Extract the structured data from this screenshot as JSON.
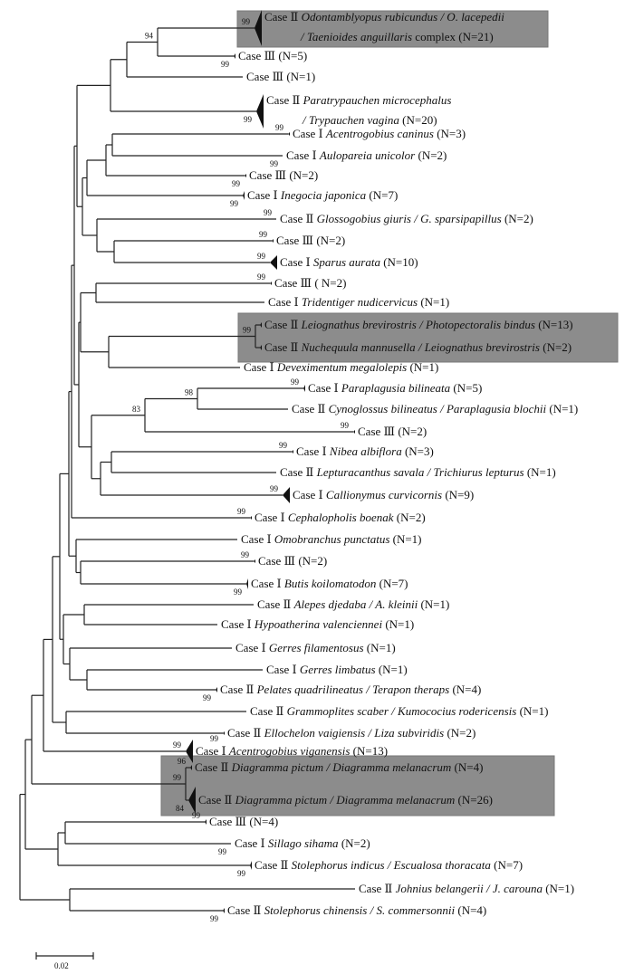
{
  "tree": {
    "leaves": [
      {
        "case": "Case Ⅱ",
        "species": "Odontamblyopus rubicundus / O. lacepedii",
        "species2": "/ Taenioides anguillaris",
        "suffix": " complex (N=21)",
        "bootstrap": "99"
      },
      {
        "case": "Case Ⅲ",
        "species": "",
        "suffix": "(N=5)",
        "bootstrap": "99",
        "bpos": "below"
      },
      {
        "case": "Case Ⅲ",
        "species": "",
        "suffix": "(N=1)"
      },
      {
        "case": "Case Ⅱ",
        "species": "Paratrypauchen microcephalus",
        "species2": "/ Trypauchen vagina",
        "suffix": " (N=20)",
        "bootstrap": "99",
        "bpos": "below"
      },
      {
        "case": "Case Ⅰ",
        "species": "Acentrogobius caninus",
        "suffix": "(N=3)",
        "bootstrap": "99"
      },
      {
        "case": "Case Ⅰ",
        "species": "Aulopareia unicolor",
        "suffix": "(N=2)",
        "bootstrap": "99",
        "bpos": "below"
      },
      {
        "case": "Case Ⅲ",
        "species": "",
        "suffix": "(N=2)",
        "bootstrap": "99",
        "bpos": "below"
      },
      {
        "case": "Case Ⅰ",
        "species": "Inegocia japonica",
        "suffix": "(N=7)",
        "bootstrap": "99",
        "bpos": "below"
      },
      {
        "case": "Case Ⅱ",
        "species": "Glossogobius giuris / G. sparsipapillus",
        "suffix": "(N=2)",
        "bootstrap": "99"
      },
      {
        "case": "Case Ⅲ",
        "species": "",
        "suffix": "(N=2)",
        "bootstrap": "99"
      },
      {
        "case": "Case Ⅰ",
        "species": "Sparus aurata",
        "suffix": "(N=10)",
        "bootstrap": "99"
      },
      {
        "case": "Case Ⅲ",
        "species": "",
        "suffix": "( N=2)",
        "bootstrap": "99"
      },
      {
        "case": "Case Ⅰ",
        "species": "Tridentiger nudicervicus",
        "suffix": "(N=1)"
      },
      {
        "case": "Case Ⅱ",
        "species": "Leiognathus brevirostris / Photopectoralis bindus",
        "suffix": "(N=13)"
      },
      {
        "case": "Case Ⅱ",
        "species": "Nuchequula mannusella / Leiognathus brevirostris",
        "suffix": "(N=2)"
      },
      {
        "case": "Case Ⅰ",
        "species": "Deveximentum megalolepis",
        "suffix": "(N=1)"
      },
      {
        "case": "Case Ⅰ",
        "species": "Paraplagusia bilineata",
        "suffix": "(N=5)",
        "bootstrap": "99"
      },
      {
        "case": "Case Ⅱ",
        "species": "Cynoglossus bilineatus / Paraplagusia blochii",
        "suffix": "(N=1)"
      },
      {
        "case": "Case Ⅲ",
        "species": "",
        "suffix": "(N=2)",
        "bootstrap": "99"
      },
      {
        "case": "Case Ⅰ",
        "species": "Nibea albiflora",
        "suffix": "(N=3)",
        "bootstrap": "99"
      },
      {
        "case": "Case Ⅱ",
        "species": "Lepturacanthus savala / Trichiurus lepturus",
        "suffix": "(N=1)"
      },
      {
        "case": "Case Ⅰ",
        "species": "Callionymus curvicornis",
        "suffix": "(N=9)",
        "bootstrap": "99"
      },
      {
        "case": "Case Ⅰ",
        "species": "Cephalopholis boenak",
        "suffix": "(N=2)",
        "bootstrap": "99"
      },
      {
        "case": "Case Ⅰ",
        "species": "Omobranchus punctatus",
        "suffix": "(N=1)"
      },
      {
        "case": "Case Ⅲ",
        "species": "",
        "suffix": "(N=2)",
        "bootstrap": "99"
      },
      {
        "case": "Case Ⅰ",
        "species": "Butis koilomatodon",
        "suffix": "(N=7)",
        "bootstrap": "99",
        "bpos": "below"
      },
      {
        "case": "Case Ⅱ",
        "species": "Alepes djedaba / A. kleinii",
        "suffix": "(N=1)"
      },
      {
        "case": "Case Ⅰ",
        "species": "Hypoatherina valenciennei",
        "suffix": "(N=1)"
      },
      {
        "case": "Case Ⅰ",
        "species": "Gerres filamentosus",
        "suffix": "(N=1)"
      },
      {
        "case": "Case Ⅰ",
        "species": "Gerres limbatus",
        "suffix": "(N=1)"
      },
      {
        "case": "Case Ⅱ",
        "species": "Pelates quadrilineatus / Terapon theraps",
        "suffix": "(N=4)",
        "bootstrap": "99",
        "bpos": "below"
      },
      {
        "case": "Case Ⅱ",
        "species": "Grammoplites scaber / Kumococius rodericensis",
        "suffix": "(N=1)"
      },
      {
        "case": "Case Ⅱ",
        "species": "Ellochelon vaigiensis / Liza subviridis",
        "suffix": "(N=2)",
        "bootstrap": "99",
        "bpos": "below"
      },
      {
        "case": "Case Ⅰ",
        "species": "Acentrogobius viganensis",
        "suffix": "(N=13)",
        "bootstrap": "99"
      },
      {
        "case": "Case Ⅱ",
        "species": "Diagramma pictum / Diagramma melanacrum",
        "suffix": "(N=4)",
        "bootstrap": "96"
      },
      {
        "case": "Case Ⅱ",
        "species": "Diagramma pictum /  Diagramma melanacrum",
        "suffix": "(N=26)",
        "bootstrap": "84",
        "bpos": "below"
      },
      {
        "case": "Case Ⅲ",
        "species": "",
        "suffix": "(N=4)",
        "bootstrap": "99"
      },
      {
        "case": "Case Ⅰ",
        "species": "Sillago sihama",
        "suffix": "(N=2)",
        "bootstrap": "99",
        "bpos": "below"
      },
      {
        "case": "Case Ⅱ",
        "species": "Stolephorus indicus / Escualosa thoracata",
        "suffix": "(N=7)",
        "bootstrap": "99",
        "bpos": "below"
      },
      {
        "case": "Case Ⅱ",
        "species": "Johnius belangerii / J. carouna",
        "suffix": "(N=1)"
      },
      {
        "case": "Case Ⅱ",
        "species": "Stolephorus chinensis / S. commersonnii",
        "suffix": "(N=4)",
        "bootstrap": "99",
        "bpos": "below"
      }
    ],
    "node_support": {
      "odontamblyopus_node": "94",
      "cynoglossid_node": "98",
      "flatfish_node": "83",
      "leiognathid_node": "99",
      "diagramma_node": "99"
    },
    "highlight_color": "#8c8c8c"
  },
  "scale_bar": {
    "label": "0.02"
  }
}
